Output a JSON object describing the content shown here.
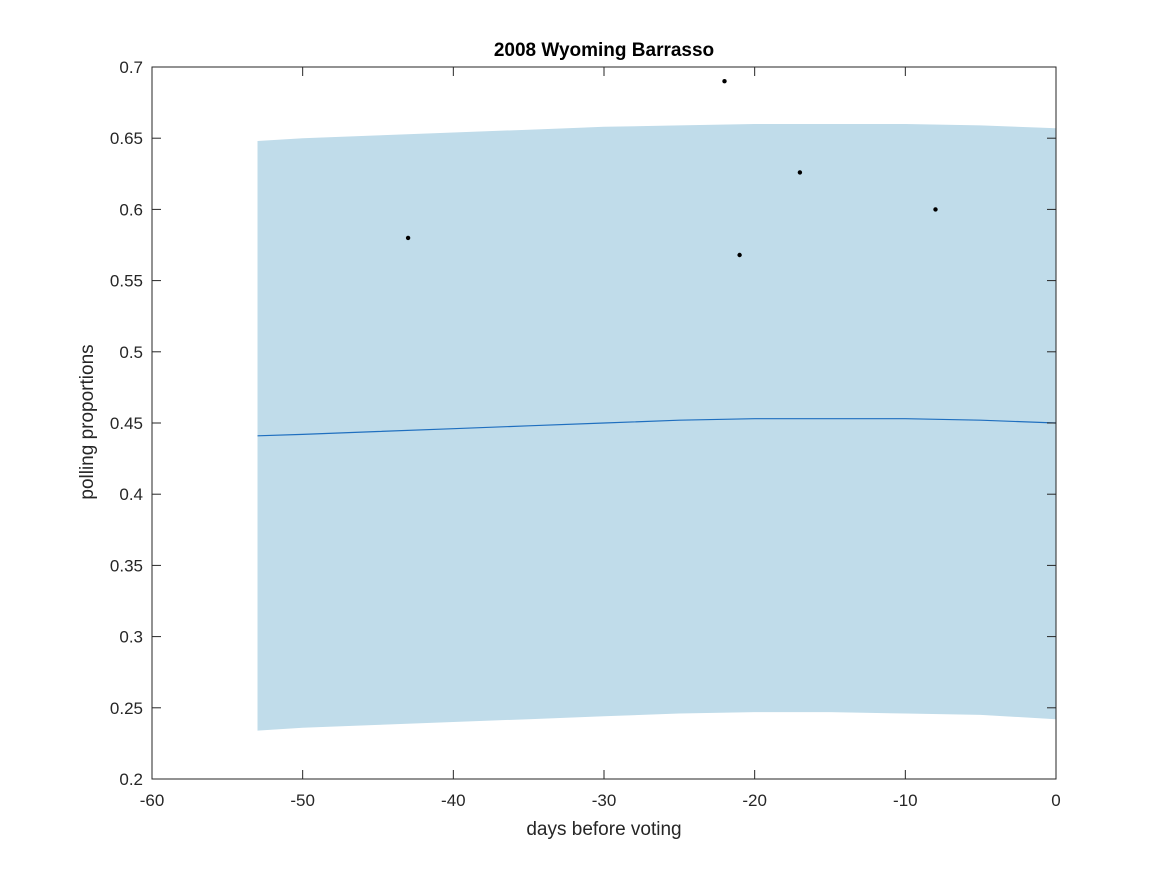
{
  "chart_data": {
    "type": "line",
    "title": "2008 Wyoming Barrasso",
    "xlabel": "days before voting",
    "ylabel": "polling proportions",
    "xlim": [
      -60,
      0
    ],
    "ylim": [
      0.2,
      0.7
    ],
    "xticks": [
      -60,
      -50,
      -40,
      -30,
      -20,
      -10,
      0
    ],
    "xtick_labels": [
      "-60",
      "-50",
      "-40",
      "-30",
      "-20",
      "-10",
      "0"
    ],
    "yticks": [
      0.2,
      0.25,
      0.3,
      0.35,
      0.4,
      0.45,
      0.5,
      0.55,
      0.6,
      0.65,
      0.7
    ],
    "ytick_labels": [
      "0.2",
      "0.25",
      "0.3",
      "0.35",
      "0.4",
      "0.45",
      "0.5",
      "0.55",
      "0.6",
      "0.65",
      "0.7"
    ],
    "grid": false,
    "band": {
      "x": [
        -53,
        -50,
        -45,
        -40,
        -35,
        -30,
        -25,
        -20,
        -15,
        -10,
        -5,
        0
      ],
      "upper": [
        0.648,
        0.65,
        0.652,
        0.654,
        0.656,
        0.658,
        0.659,
        0.66,
        0.66,
        0.66,
        0.659,
        0.657
      ],
      "lower": [
        0.234,
        0.236,
        0.238,
        0.24,
        0.242,
        0.244,
        0.246,
        0.247,
        0.247,
        0.246,
        0.245,
        0.242
      ],
      "color": "#c0dcea"
    },
    "series": [
      {
        "x": [
          -53,
          -50,
          -45,
          -40,
          -35,
          -30,
          -25,
          -20,
          -15,
          -10,
          -5,
          0
        ],
        "values": [
          0.441,
          0.442,
          0.444,
          0.446,
          0.448,
          0.45,
          0.452,
          0.453,
          0.453,
          0.453,
          0.452,
          0.45
        ],
        "color": "#1f6fbf"
      }
    ],
    "points": {
      "x": [
        -43,
        -22,
        -21,
        -17,
        -8
      ],
      "y": [
        0.58,
        0.69,
        0.568,
        0.626,
        0.6
      ],
      "color": "#000000"
    }
  }
}
